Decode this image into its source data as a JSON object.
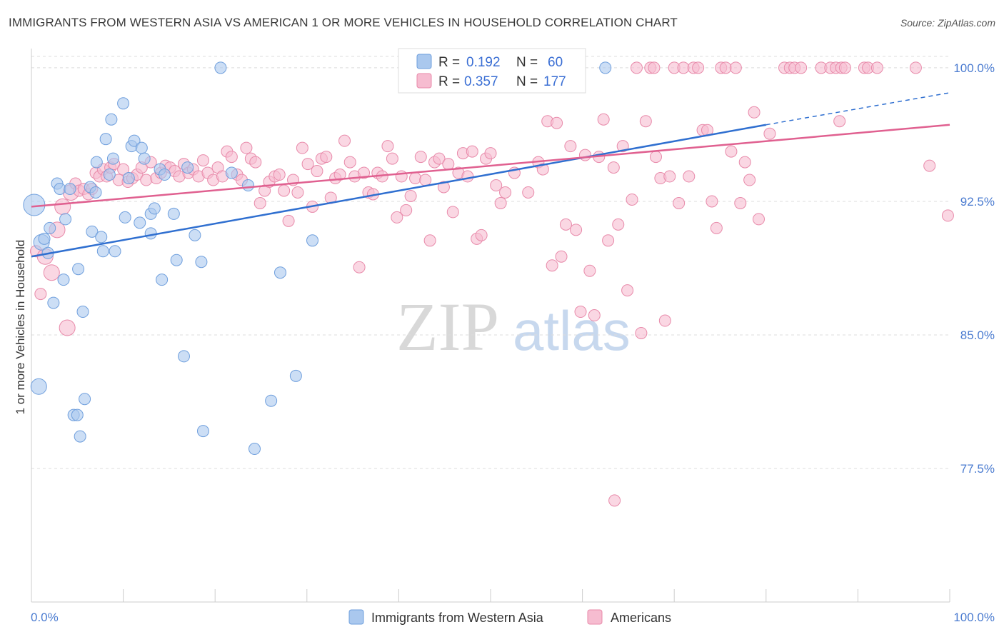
{
  "title": "IMMIGRANTS FROM WESTERN ASIA VS AMERICAN 1 OR MORE VEHICLES IN HOUSEHOLD CORRELATION CHART",
  "source": "Source: ZipAtlas.com",
  "watermark": {
    "zip": "ZIP",
    "atlas": "atlas"
  },
  "legend_top": [
    {
      "r_label": "R =",
      "r_value": "0.192",
      "n_label": "N =",
      "n_value": "60"
    },
    {
      "r_label": "R =",
      "r_value": "0.357",
      "n_label": "N =",
      "n_value": "177"
    }
  ],
  "legend_bottom": [
    {
      "label": "Immigrants from Western Asia"
    },
    {
      "label": "Americans"
    }
  ],
  "colors": {
    "blue_fill": "#aac8ee",
    "blue_stroke": "#6f9fdd",
    "blue_line": "#2f6fd0",
    "pink_fill": "#f6bcd0",
    "pink_stroke": "#e88aaa",
    "pink_line": "#e06090",
    "tick": "#4a7bd0",
    "grid": "#dcdcdc"
  },
  "chart_data": {
    "type": "scatter",
    "title": "IMMIGRANTS FROM WESTERN ASIA VS AMERICAN 1 OR MORE VEHICLES IN HOUSEHOLD CORRELATION CHART",
    "xlabel": "",
    "ylabel": "1 or more Vehicles in Household",
    "xlim": [
      0,
      100
    ],
    "ylim": [
      70.0,
      101.0
    ],
    "x_tick_labels": [
      "0.0%",
      "100.0%"
    ],
    "y_ticks": [
      77.5,
      85.0,
      92.5,
      100.0
    ],
    "y_tick_labels": [
      "77.5%",
      "85.0%",
      "92.5%",
      "100.0%"
    ],
    "grid": true,
    "legend_position": "top-center",
    "series": [
      {
        "name": "Immigrants from Western Asia",
        "color": "#aac8ee",
        "trend": {
          "x": [
            0,
            80
          ],
          "y": [
            89.4,
            96.8
          ],
          "extended_to": [
            100,
            98.6
          ]
        },
        "points": [
          [
            0.3,
            92.3,
            3
          ],
          [
            0.8,
            82.1,
            2
          ],
          [
            1.1,
            90.2,
            2
          ],
          [
            1.4,
            90.4,
            1
          ],
          [
            1.8,
            89.6,
            1
          ],
          [
            2.0,
            91.0,
            1
          ],
          [
            2.4,
            86.8,
            1
          ],
          [
            2.8,
            93.5,
            1
          ],
          [
            3.1,
            93.2,
            1
          ],
          [
            3.5,
            88.1,
            1
          ],
          [
            3.7,
            91.5,
            1
          ],
          [
            4.2,
            93.2,
            1
          ],
          [
            4.6,
            80.5,
            1
          ],
          [
            5.0,
            80.5,
            1
          ],
          [
            5.1,
            88.7,
            1
          ],
          [
            5.3,
            79.3,
            1
          ],
          [
            5.6,
            86.3,
            1
          ],
          [
            5.8,
            81.4,
            1
          ],
          [
            6.4,
            93.3,
            1
          ],
          [
            6.6,
            90.8,
            1
          ],
          [
            7.0,
            93.0,
            1
          ],
          [
            7.1,
            94.7,
            1
          ],
          [
            7.6,
            90.5,
            1
          ],
          [
            7.8,
            89.7,
            1
          ],
          [
            8.1,
            96.0,
            1
          ],
          [
            8.5,
            94.0,
            1
          ],
          [
            8.7,
            97.1,
            1
          ],
          [
            8.9,
            94.9,
            1
          ],
          [
            9.1,
            89.7,
            1
          ],
          [
            10.0,
            98.0,
            1
          ],
          [
            10.2,
            91.6,
            1
          ],
          [
            10.6,
            93.8,
            1
          ],
          [
            10.9,
            95.6,
            1
          ],
          [
            11.2,
            95.9,
            1
          ],
          [
            11.8,
            91.3,
            1
          ],
          [
            12.0,
            95.5,
            1
          ],
          [
            12.3,
            94.9,
            1
          ],
          [
            13.0,
            90.7,
            1
          ],
          [
            13.0,
            91.8,
            1
          ],
          [
            13.4,
            92.1,
            1
          ],
          [
            14.0,
            94.3,
            1
          ],
          [
            14.2,
            88.1,
            1
          ],
          [
            14.5,
            94.0,
            1
          ],
          [
            15.5,
            91.8,
            1
          ],
          [
            15.8,
            89.2,
            1
          ],
          [
            16.6,
            83.8,
            1
          ],
          [
            17.0,
            94.4,
            1
          ],
          [
            17.8,
            90.6,
            1
          ],
          [
            18.5,
            89.1,
            1
          ],
          [
            18.7,
            79.6,
            1
          ],
          [
            20.6,
            100.0,
            1
          ],
          [
            21.8,
            94.1,
            1
          ],
          [
            23.6,
            93.4,
            1
          ],
          [
            24.3,
            78.6,
            1
          ],
          [
            26.1,
            81.3,
            1
          ],
          [
            27.1,
            88.5,
            1
          ],
          [
            28.8,
            82.7,
            1
          ],
          [
            30.6,
            90.3,
            1
          ],
          [
            62.5,
            100.0,
            1
          ]
        ]
      },
      {
        "name": "Americans",
        "color": "#f6bcd0",
        "trend": {
          "x": [
            0,
            100
          ],
          "y": [
            92.2,
            96.8
          ]
        },
        "points": [
          [
            0.5,
            89.7,
            1
          ],
          [
            1.0,
            87.3,
            1
          ],
          [
            1.5,
            89.4,
            2
          ],
          [
            2.2,
            88.5,
            2
          ],
          [
            2.8,
            90.9,
            2
          ],
          [
            3.4,
            92.2,
            2
          ],
          [
            3.9,
            85.4,
            2
          ],
          [
            4.3,
            93.0,
            2
          ],
          [
            4.8,
            93.5,
            1
          ],
          [
            5.2,
            93.1,
            1
          ],
          [
            5.7,
            93.2,
            1
          ],
          [
            6.2,
            92.9,
            1
          ],
          [
            6.6,
            93.2,
            1
          ],
          [
            7.0,
            94.1,
            1
          ],
          [
            7.4,
            93.9,
            1
          ],
          [
            7.8,
            94.3,
            1
          ],
          [
            8.2,
            93.9,
            1
          ],
          [
            8.6,
            94.4,
            1
          ],
          [
            9.0,
            94.6,
            1
          ],
          [
            9.5,
            93.7,
            1
          ],
          [
            10.0,
            94.3,
            1
          ],
          [
            10.5,
            93.6,
            1
          ],
          [
            11.0,
            93.8,
            1
          ],
          [
            11.5,
            94.0,
            1
          ],
          [
            12.0,
            94.4,
            1
          ],
          [
            12.5,
            93.7,
            1
          ],
          [
            13.0,
            94.7,
            1
          ],
          [
            13.6,
            93.8,
            1
          ],
          [
            14.1,
            94.1,
            1
          ],
          [
            14.6,
            94.5,
            1
          ],
          [
            15.1,
            94.4,
            1
          ],
          [
            15.6,
            94.2,
            1
          ],
          [
            16.1,
            93.9,
            1
          ],
          [
            16.6,
            94.6,
            1
          ],
          [
            17.1,
            94.1,
            1
          ],
          [
            17.6,
            94.3,
            1
          ],
          [
            18.2,
            93.9,
            1
          ],
          [
            18.7,
            94.8,
            1
          ],
          [
            19.2,
            94.1,
            1
          ],
          [
            19.8,
            93.7,
            1
          ],
          [
            20.3,
            94.4,
            1
          ],
          [
            20.8,
            93.9,
            1
          ],
          [
            21.3,
            95.3,
            1
          ],
          [
            21.8,
            95.0,
            1
          ],
          [
            22.4,
            94.0,
            1
          ],
          [
            22.9,
            93.7,
            1
          ],
          [
            23.4,
            95.5,
            1
          ],
          [
            23.9,
            94.9,
            1
          ],
          [
            24.4,
            94.7,
            1
          ],
          [
            24.9,
            92.4,
            1
          ],
          [
            25.4,
            93.1,
            1
          ],
          [
            25.9,
            93.6,
            1
          ],
          [
            26.5,
            93.9,
            1
          ],
          [
            27.0,
            94.0,
            1
          ],
          [
            27.5,
            93.1,
            1
          ],
          [
            28.0,
            91.4,
            1
          ],
          [
            28.5,
            93.7,
            1
          ],
          [
            29.0,
            93.0,
            1
          ],
          [
            29.5,
            95.5,
            1
          ],
          [
            30.1,
            94.6,
            1
          ],
          [
            30.6,
            92.2,
            1
          ],
          [
            31.1,
            94.2,
            1
          ],
          [
            31.6,
            94.9,
            1
          ],
          [
            32.1,
            95.0,
            1
          ],
          [
            32.6,
            92.7,
            1
          ],
          [
            33.1,
            93.8,
            1
          ],
          [
            33.6,
            94.0,
            1
          ],
          [
            34.1,
            95.9,
            1
          ],
          [
            34.7,
            94.7,
            1
          ],
          [
            35.2,
            93.9,
            1
          ],
          [
            35.7,
            88.8,
            1
          ],
          [
            36.2,
            94.1,
            1
          ],
          [
            36.7,
            93.0,
            1
          ],
          [
            37.2,
            92.9,
            1
          ],
          [
            37.7,
            94.1,
            1
          ],
          [
            38.2,
            93.9,
            1
          ],
          [
            38.8,
            95.6,
            1
          ],
          [
            39.3,
            94.9,
            1
          ],
          [
            39.8,
            91.6,
            1
          ],
          [
            40.3,
            93.9,
            1
          ],
          [
            40.8,
            92.0,
            1
          ],
          [
            41.3,
            92.8,
            1
          ],
          [
            41.8,
            93.8,
            1
          ],
          [
            42.4,
            95.0,
            1
          ],
          [
            42.9,
            93.7,
            1
          ],
          [
            43.4,
            90.3,
            1
          ],
          [
            43.9,
            94.7,
            1
          ],
          [
            44.4,
            94.9,
            1
          ],
          [
            44.9,
            93.3,
            1
          ],
          [
            45.4,
            94.6,
            1
          ],
          [
            45.9,
            91.9,
            1
          ],
          [
            46.5,
            94.1,
            1
          ],
          [
            47.0,
            95.2,
            1
          ],
          [
            47.5,
            93.9,
            1
          ],
          [
            48.0,
            95.3,
            1
          ],
          [
            48.5,
            90.4,
            1
          ],
          [
            49.0,
            90.6,
            1
          ],
          [
            49.5,
            94.9,
            1
          ],
          [
            50.0,
            95.2,
            1
          ],
          [
            50.6,
            93.4,
            1
          ],
          [
            51.1,
            92.4,
            1
          ],
          [
            51.6,
            93.0,
            1
          ],
          [
            52.1,
            100.0,
            1
          ],
          [
            52.6,
            94.1,
            1
          ],
          [
            53.1,
            99.2,
            1
          ],
          [
            53.6,
            99.9,
            1
          ],
          [
            54.1,
            93.0,
            1
          ],
          [
            54.6,
            99.6,
            1
          ],
          [
            55.2,
            94.7,
            1
          ],
          [
            55.7,
            94.3,
            1
          ],
          [
            56.2,
            97.0,
            1
          ],
          [
            56.7,
            88.9,
            1
          ],
          [
            57.2,
            96.9,
            1
          ],
          [
            57.7,
            89.4,
            1
          ],
          [
            58.2,
            91.2,
            1
          ],
          [
            58.7,
            95.6,
            1
          ],
          [
            59.3,
            90.9,
            1
          ],
          [
            59.8,
            86.3,
            1
          ],
          [
            60.3,
            95.1,
            1
          ],
          [
            60.8,
            88.6,
            1
          ],
          [
            61.3,
            86.1,
            1
          ],
          [
            61.8,
            95.0,
            1
          ],
          [
            62.3,
            97.1,
            1
          ],
          [
            62.8,
            90.3,
            1
          ],
          [
            63.4,
            94.4,
            1
          ],
          [
            63.9,
            91.2,
            1
          ],
          [
            64.4,
            95.6,
            1
          ],
          [
            64.9,
            87.5,
            1
          ],
          [
            65.4,
            92.6,
            1
          ],
          [
            65.9,
            100.0,
            1
          ],
          [
            66.4,
            85.1,
            1
          ],
          [
            66.9,
            97.0,
            1
          ],
          [
            67.4,
            100.0,
            1
          ],
          [
            67.8,
            100.0,
            1
          ],
          [
            68.0,
            95.0,
            1
          ],
          [
            68.5,
            93.8,
            1
          ],
          [
            69.0,
            85.8,
            1
          ],
          [
            69.5,
            93.9,
            1
          ],
          [
            70.0,
            100.0,
            1
          ],
          [
            70.5,
            92.4,
            1
          ],
          [
            71.0,
            100.0,
            1
          ],
          [
            71.6,
            93.9,
            1
          ],
          [
            72.1,
            100.0,
            1
          ],
          [
            72.6,
            100.0,
            1
          ],
          [
            73.1,
            96.5,
            1
          ],
          [
            73.6,
            96.5,
            1
          ],
          [
            74.1,
            92.5,
            1
          ],
          [
            74.6,
            91.0,
            1
          ],
          [
            75.1,
            100.0,
            1
          ],
          [
            75.6,
            100.0,
            1
          ],
          [
            76.2,
            95.3,
            1
          ],
          [
            76.7,
            100.0,
            1
          ],
          [
            77.2,
            92.4,
            1
          ],
          [
            77.7,
            94.7,
            1
          ],
          [
            78.2,
            93.7,
            1
          ],
          [
            78.7,
            97.5,
            1
          ],
          [
            79.2,
            91.5,
            1
          ],
          [
            80.4,
            96.3,
            1
          ],
          [
            82.0,
            100.0,
            1
          ],
          [
            82.6,
            100.0,
            1
          ],
          [
            83.1,
            100.0,
            1
          ],
          [
            83.8,
            100.0,
            1
          ],
          [
            86.0,
            100.0,
            1
          ],
          [
            87.0,
            100.0,
            1
          ],
          [
            87.6,
            100.0,
            1
          ],
          [
            88.2,
            100.0,
            1
          ],
          [
            88.6,
            100.0,
            1
          ],
          [
            88.0,
            97.0,
            1
          ],
          [
            90.7,
            100.0,
            1
          ],
          [
            91.1,
            100.0,
            1
          ],
          [
            92.1,
            100.0,
            1
          ],
          [
            96.3,
            100.0,
            1
          ],
          [
            97.8,
            94.5,
            1
          ],
          [
            99.8,
            91.7,
            1
          ],
          [
            63.5,
            75.7,
            1
          ]
        ]
      }
    ]
  }
}
